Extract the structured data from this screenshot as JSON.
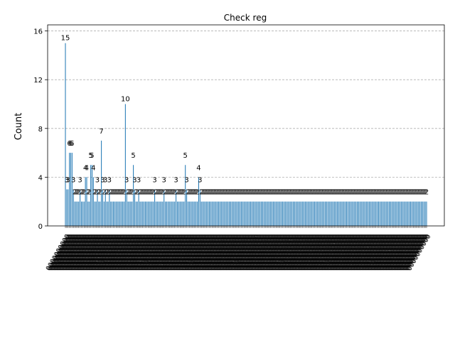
{
  "chart_data": {
    "type": "bar",
    "title": "Check reg",
    "xlabel": "",
    "ylabel": "Count",
    "ylim": [
      0,
      16.5
    ],
    "yticks": [
      0,
      4,
      8,
      12,
      16
    ],
    "grid": "horizontal dashed",
    "bar_color": "#1f77b4",
    "x_tick_labels_legible": false,
    "x_tick_label_sample": "0000000000",
    "category_count": 260,
    "values": [
      15,
      3,
      3,
      6,
      6,
      6,
      3,
      2,
      2,
      2,
      2,
      3,
      2,
      2,
      2,
      4,
      4,
      2,
      2,
      5,
      5,
      4,
      2,
      2,
      3,
      2,
      2,
      7,
      3,
      2,
      3,
      2,
      2,
      3,
      2,
      2,
      2,
      2,
      2,
      2,
      2,
      2,
      2,
      2,
      2,
      10,
      3,
      2,
      2,
      2,
      2,
      5,
      3,
      2,
      2,
      3,
      2,
      2,
      2,
      2,
      2,
      2,
      2,
      2,
      2,
      2,
      2,
      3,
      2,
      2,
      2,
      2,
      2,
      2,
      3,
      2,
      2,
      2,
      2,
      2,
      2,
      2,
      2,
      3,
      2,
      2,
      2,
      2,
      2,
      2,
      5,
      3,
      2,
      2,
      2,
      2,
      2,
      2,
      2,
      2,
      4,
      3,
      2,
      2,
      2,
      2,
      2,
      2,
      2,
      2,
      2,
      2,
      2,
      2,
      2,
      2,
      2,
      2,
      2,
      2,
      2,
      2,
      2,
      2,
      2,
      2,
      2,
      2,
      2,
      2,
      2,
      2,
      2,
      2,
      2,
      2,
      2,
      2,
      2,
      2,
      2,
      2,
      2,
      2,
      2,
      2,
      2,
      2,
      2,
      2,
      2,
      2,
      2,
      2,
      2,
      2,
      2,
      2,
      2,
      2,
      2,
      2,
      2,
      2,
      2,
      2,
      2,
      2,
      2,
      2,
      2,
      2,
      2,
      2,
      2,
      2,
      2,
      2,
      2,
      2,
      2,
      2,
      2,
      2,
      2,
      2,
      2,
      2,
      2,
      2,
      2,
      2,
      2,
      2,
      2,
      2,
      2,
      2,
      2,
      2,
      2,
      2,
      2,
      2,
      2,
      2,
      2,
      2,
      2,
      2,
      2,
      2,
      2,
      2,
      2,
      2,
      2,
      2,
      2,
      2,
      2,
      2,
      2,
      2,
      2,
      2,
      2,
      2,
      2,
      2,
      2,
      2,
      2,
      2,
      2,
      2,
      2,
      2,
      2,
      2,
      2,
      2,
      2,
      2,
      2,
      2,
      2,
      2,
      2,
      2,
      2,
      2,
      2,
      2,
      2,
      2,
      2,
      2,
      2,
      2,
      2,
      2,
      2,
      2,
      2,
      2,
      2,
      2,
      2,
      2,
      2,
      2
    ]
  }
}
